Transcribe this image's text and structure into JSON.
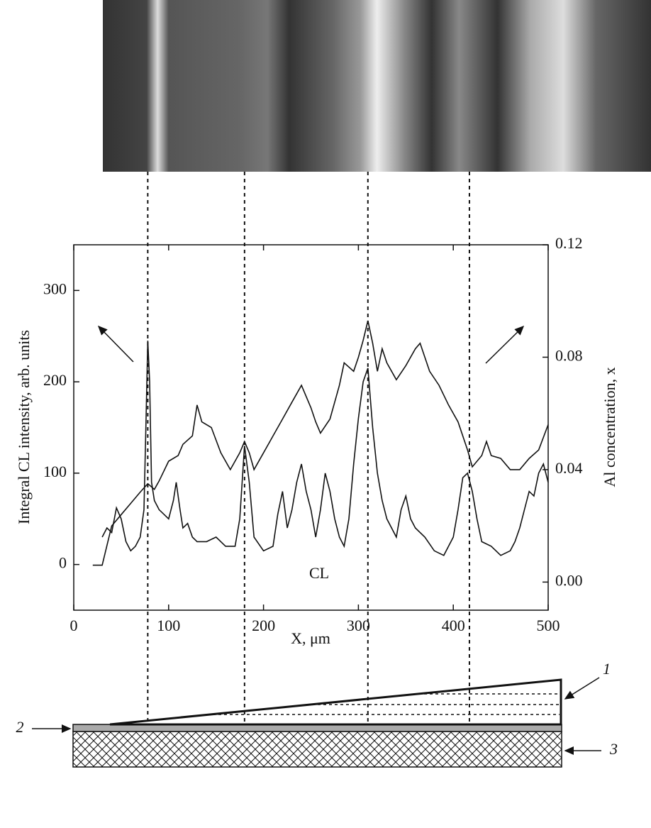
{
  "chart_data": {
    "type": "line",
    "xlabel": "X, μm",
    "ylabel": "Integral CL intensity, arb. units",
    "y2label": "Al concentration, x",
    "xlim": [
      0,
      500
    ],
    "xticks": [
      0,
      100,
      200,
      300,
      400,
      500
    ],
    "ylim": [
      -50,
      350
    ],
    "yticks": [
      0,
      100,
      200,
      300
    ],
    "y2lim": [
      -0.01,
      0.12
    ],
    "y2ticks": [
      {
        "value": 0,
        "label": "0.00"
      },
      {
        "value": 0.04,
        "label": "0.04"
      },
      {
        "value": 0.08,
        "label": "0.08"
      },
      {
        "value": 0.12,
        "label": "0.12"
      }
    ],
    "markers": [
      78,
      180,
      310,
      417
    ],
    "layer_labels": [
      "1",
      "2",
      "3"
    ],
    "series": [
      {
        "name": "CL",
        "color": "#111111",
        "x": [
          30,
          35,
          40,
          45,
          50,
          55,
          60,
          65,
          70,
          74,
          76,
          78,
          80,
          82,
          85,
          90,
          95,
          100,
          105,
          108,
          112,
          115,
          120,
          125,
          130,
          140,
          150,
          160,
          170,
          175,
          180,
          185,
          190,
          200,
          210,
          215,
          220,
          225,
          230,
          235,
          240,
          245,
          250,
          255,
          260,
          265,
          270,
          275,
          280,
          285,
          290,
          295,
          300,
          305,
          310,
          315,
          320,
          325,
          330,
          340,
          345,
          350,
          355,
          360,
          370,
          380,
          390,
          400,
          405,
          410,
          415,
          420,
          425,
          430,
          440,
          450,
          460,
          465,
          470,
          475,
          480,
          485,
          490,
          495,
          500
        ],
        "values": [
          30,
          40,
          35,
          62,
          50,
          25,
          15,
          20,
          30,
          60,
          150,
          245,
          200,
          90,
          70,
          60,
          55,
          50,
          70,
          90,
          60,
          40,
          45,
          30,
          25,
          25,
          30,
          20,
          20,
          50,
          130,
          90,
          30,
          15,
          20,
          55,
          80,
          40,
          60,
          90,
          110,
          80,
          60,
          30,
          60,
          100,
          80,
          50,
          30,
          20,
          50,
          110,
          160,
          200,
          215,
          150,
          100,
          70,
          50,
          30,
          60,
          75,
          50,
          40,
          30,
          15,
          10,
          30,
          60,
          95,
          100,
          80,
          50,
          25,
          20,
          10,
          15,
          25,
          40,
          60,
          80,
          75,
          100,
          110,
          90
        ]
      },
      {
        "color": "#111111",
        "axis": "y2",
        "x": [
          20,
          30,
          40,
          50,
          60,
          70,
          78,
          85,
          90,
          100,
          110,
          115,
          125,
          130,
          135,
          145,
          155,
          165,
          175,
          180,
          185,
          190,
          200,
          210,
          220,
          230,
          240,
          250,
          255,
          260,
          270,
          280,
          285,
          295,
          300,
          305,
          310,
          315,
          320,
          325,
          330,
          340,
          350,
          360,
          365,
          375,
          385,
          395,
          405,
          415,
          420,
          430,
          435,
          440,
          450,
          460,
          470,
          480,
          490,
          500
        ],
        "values": [
          0.006,
          0.006,
          0.02,
          0.024,
          0.028,
          0.032,
          0.035,
          0.033,
          0.036,
          0.043,
          0.045,
          0.049,
          0.052,
          0.063,
          0.057,
          0.055,
          0.046,
          0.04,
          0.046,
          0.05,
          0.046,
          0.04,
          0.046,
          0.052,
          0.058,
          0.064,
          0.07,
          0.062,
          0.057,
          0.053,
          0.058,
          0.07,
          0.078,
          0.075,
          0.08,
          0.086,
          0.093,
          0.085,
          0.075,
          0.083,
          0.078,
          0.072,
          0.077,
          0.083,
          0.085,
          0.075,
          0.07,
          0.063,
          0.057,
          0.047,
          0.041,
          0.045,
          0.05,
          0.045,
          0.044,
          0.04,
          0.04,
          0.044,
          0.047,
          0.056
        ]
      }
    ]
  }
}
